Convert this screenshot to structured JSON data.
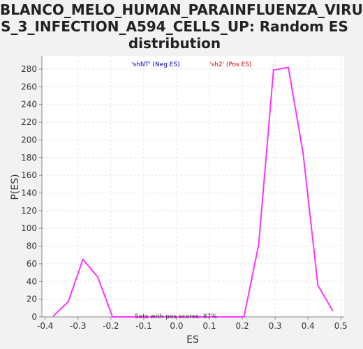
{
  "title_lines": [
    "BLANCO_MELO_HUMAN_PARAINFLUENZA_VIRU",
    "S_3_INFECTION_A594_CELLS_UP: Random ES",
    "distribution"
  ],
  "colors": {
    "line": "#ff33ff",
    "neg_legend": "#0000cc",
    "pos_legend": "#dd0000",
    "plot_bg": "#ffffff",
    "grid": "#e6e6e6"
  },
  "chart_data": {
    "type": "line",
    "title": "BLANCO_MELO_HUMAN_PARAINFLUENZA_VIRUS_3_INFECTION_A594_CELLS_UP: Random ES distribution",
    "xlabel": "ES",
    "ylabel": "P(ES)",
    "xlim": [
      -0.41,
      0.51
    ],
    "ylim": [
      0,
      295
    ],
    "xticks": [
      -0.4,
      -0.3,
      -0.2,
      -0.1,
      0.0,
      0.1,
      0.2,
      0.3,
      0.4,
      0.5
    ],
    "xtick_labels": [
      "-0.4",
      "-0.3",
      "-0.2",
      "-0.1",
      "0.0",
      "0.1",
      "0.2",
      "0.3",
      "0.4",
      "0.5"
    ],
    "yticks": [
      0,
      20,
      40,
      60,
      80,
      100,
      120,
      140,
      160,
      180,
      200,
      220,
      240,
      260,
      280
    ],
    "grid": true,
    "legend_neg": "'shNT' (Neg ES)",
    "legend_pos": "'sh2' (Pos ES)",
    "annotation": "Sets with pos scores: 87%",
    "series": [
      {
        "x": [
          -0.375,
          -0.33,
          -0.285,
          -0.24,
          -0.195,
          -0.15,
          -0.105,
          -0.06,
          -0.015,
          0.03,
          0.075,
          0.12,
          0.165,
          0.205,
          0.25,
          0.295,
          0.34,
          0.385,
          0.43,
          0.475
        ],
        "y": [
          1,
          17,
          65,
          45,
          0,
          0,
          0,
          0,
          0,
          0,
          0,
          0,
          0,
          0,
          82,
          279,
          282,
          185,
          36,
          7
        ]
      }
    ]
  }
}
